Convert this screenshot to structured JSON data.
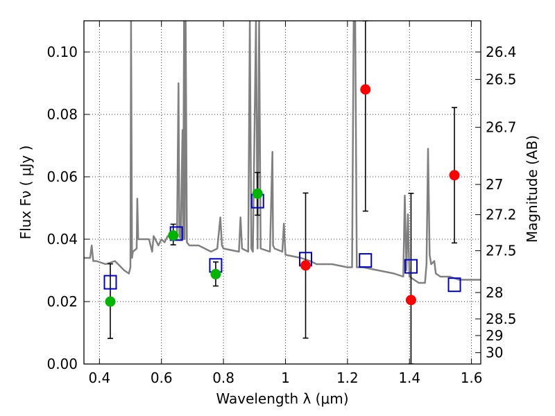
{
  "chart_data": {
    "type": "scatter",
    "xlabel": "Wavelength  λ (μm)",
    "ylabel": "Flux  Fν ( μJy )",
    "ylabel_right": "Magnitude (AB)",
    "xlim": [
      0.35,
      1.63
    ],
    "ylim": [
      0.0,
      0.11
    ],
    "grid": true,
    "x_ticks": [
      {
        "value": 0.4,
        "label": "0.4"
      },
      {
        "value": 0.6,
        "label": "0.6"
      },
      {
        "value": 0.8,
        "label": "0.8"
      },
      {
        "value": 1.0,
        "label": "1"
      },
      {
        "value": 1.2,
        "label": "1.2"
      },
      {
        "value": 1.4,
        "label": "1.4"
      },
      {
        "value": 1.6,
        "label": "1.6"
      }
    ],
    "y_ticks": [
      {
        "value": 0.0,
        "label": "0.00"
      },
      {
        "value": 0.02,
        "label": "0.02"
      },
      {
        "value": 0.04,
        "label": "0.04"
      },
      {
        "value": 0.06,
        "label": "0.06"
      },
      {
        "value": 0.08,
        "label": "0.08"
      },
      {
        "value": 0.1,
        "label": "0.10"
      }
    ],
    "mag_ticks": [
      {
        "mag": 26.4,
        "label": "26.4"
      },
      {
        "mag": 26.5,
        "label": "26.5"
      },
      {
        "mag": 26.7,
        "label": "26.7"
      },
      {
        "mag": 27.0,
        "label": "27"
      },
      {
        "mag": 27.2,
        "label": "27.2"
      },
      {
        "mag": 27.5,
        "label": "27.5"
      },
      {
        "mag": 28.0,
        "label": "28"
      },
      {
        "mag": 28.5,
        "label": "28.5"
      },
      {
        "mag": 29.0,
        "label": "29"
      },
      {
        "mag": 30.0,
        "label": "30"
      }
    ],
    "series": [
      {
        "kind": "line",
        "color": "#808080",
        "x": [
          0.35,
          0.37,
          0.375,
          0.38,
          0.39,
          0.42,
          0.45,
          0.48,
          0.495,
          0.5,
          0.502,
          0.505,
          0.508,
          0.52,
          0.522,
          0.525,
          0.56,
          0.57,
          0.575,
          0.59,
          0.6,
          0.61,
          0.62,
          0.65,
          0.655,
          0.658,
          0.662,
          0.668,
          0.67,
          0.673,
          0.675,
          0.678,
          0.682,
          0.69,
          0.72,
          0.76,
          0.78,
          0.79,
          0.795,
          0.8,
          0.85,
          0.855,
          0.86,
          0.88,
          0.885,
          0.89,
          0.895,
          0.905,
          0.91,
          0.915,
          0.92,
          0.95,
          0.958,
          0.96,
          0.965,
          0.99,
          0.995,
          1.0,
          1.05,
          1.08,
          1.1,
          1.15,
          1.2,
          1.215,
          1.22,
          1.225,
          1.23,
          1.25,
          1.3,
          1.35,
          1.38,
          1.385,
          1.39,
          1.395,
          1.4,
          1.43,
          1.45,
          1.455,
          1.46,
          1.465,
          1.47,
          1.48,
          1.485,
          1.5,
          1.53,
          1.56,
          1.59,
          1.63
        ],
        "y": [
          0.034,
          0.034,
          0.038,
          0.033,
          0.033,
          0.032,
          0.033,
          0.03,
          0.029,
          0.031,
          0.11,
          0.034,
          0.036,
          0.037,
          0.053,
          0.04,
          0.04,
          0.036,
          0.041,
          0.038,
          0.04,
          0.039,
          0.041,
          0.04,
          0.09,
          0.041,
          0.04,
          0.075,
          0.04,
          0.11,
          0.04,
          0.11,
          0.039,
          0.038,
          0.038,
          0.036,
          0.037,
          0.047,
          0.038,
          0.037,
          0.036,
          0.047,
          0.037,
          0.036,
          0.11,
          0.037,
          0.036,
          0.11,
          0.037,
          0.11,
          0.037,
          0.036,
          0.068,
          0.038,
          0.037,
          0.036,
          0.045,
          0.035,
          0.034,
          0.033,
          0.032,
          0.032,
          0.031,
          0.031,
          0.11,
          0.11,
          0.031,
          0.031,
          0.03,
          0.029,
          0.028,
          0.054,
          0.03,
          0.048,
          0.028,
          0.026,
          0.026,
          0.032,
          0.069,
          0.035,
          0.032,
          0.033,
          0.029,
          0.028,
          0.028,
          0.027,
          0.027,
          0.027
        ]
      },
      {
        "kind": "open-square",
        "color": "#0000cc",
        "x": [
          0.435,
          0.648,
          0.775,
          0.91,
          1.065,
          1.258,
          1.405,
          1.545
        ],
        "y": [
          0.0262,
          0.0418,
          0.0316,
          0.0522,
          0.0336,
          0.0332,
          0.0313,
          0.0254
        ]
      },
      {
        "kind": "point",
        "color": "#00b400",
        "x": [
          0.435,
          0.638,
          0.775,
          0.91
        ],
        "y": [
          0.02,
          0.0412,
          0.0288,
          0.0546
        ],
        "yerr_low": [
          0.0082,
          0.0382,
          0.025,
          0.0477
        ],
        "yerr_high": [
          0.0321,
          0.0448,
          0.0327,
          0.0614
        ]
      },
      {
        "kind": "point",
        "color": "#ff0000",
        "x": [
          1.065,
          1.258,
          1.405,
          1.545
        ],
        "y": [
          0.0316,
          0.088,
          0.0205,
          0.0605
        ],
        "yerr_low": [
          0.0083,
          0.049,
          0.0,
          0.0388
        ],
        "yerr_high": [
          0.0548,
          0.11,
          0.0547,
          0.0822
        ]
      }
    ]
  }
}
